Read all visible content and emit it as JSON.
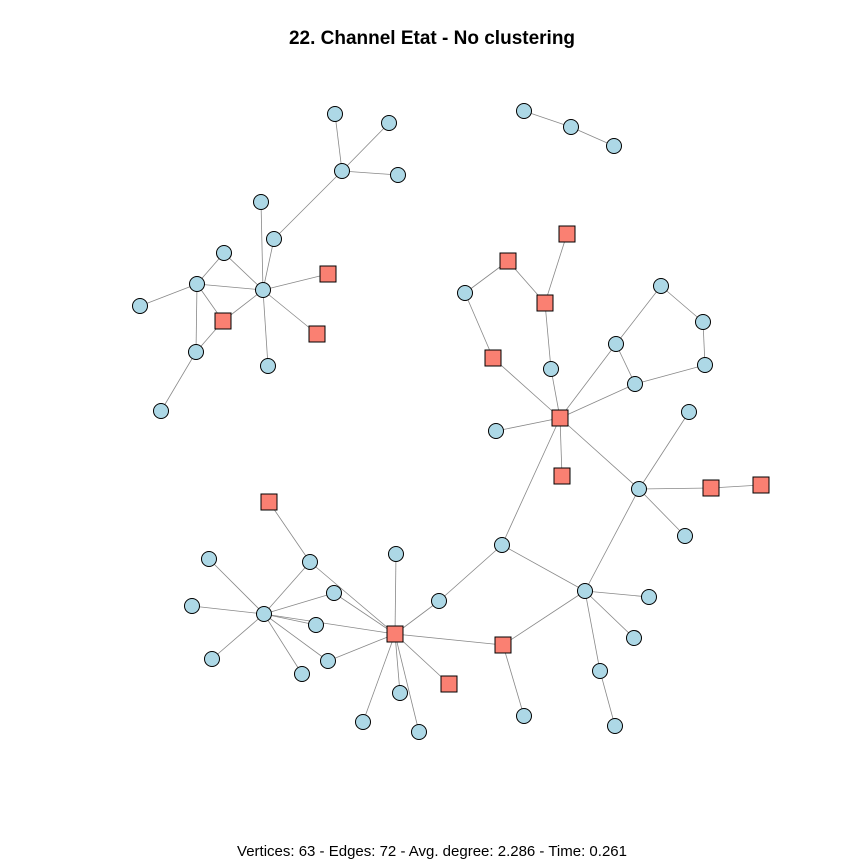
{
  "title": "22. Channel Etat - No clustering",
  "stats": "Vertices: 63 - Edges: 72 - Avg. degree: 2.286 - Time: 0.261",
  "colors": {
    "circle_node_fill": "#add8e6",
    "square_node_fill": "#fa8072",
    "node_stroke": "#000000",
    "edge_stroke": "#888888"
  }
}
